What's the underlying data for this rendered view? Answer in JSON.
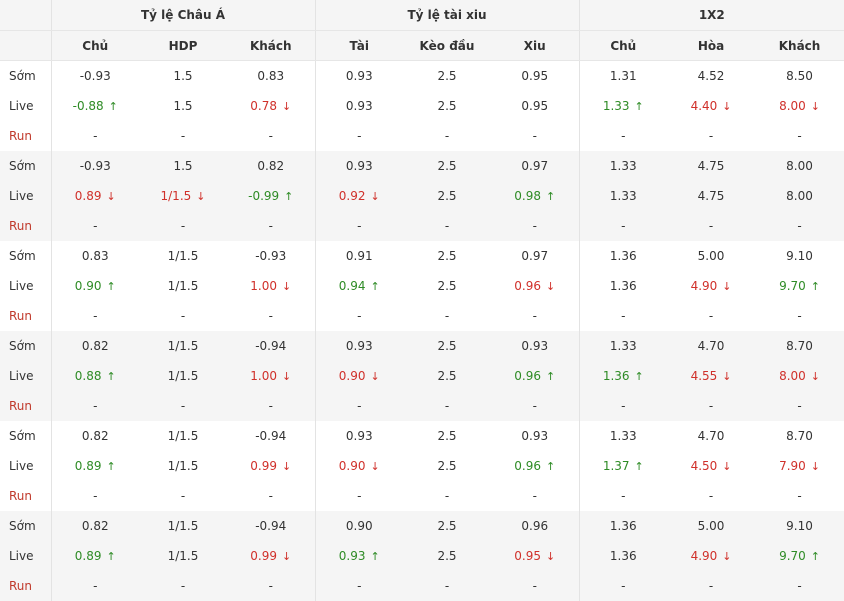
{
  "header": {
    "groups": [
      "Tỷ lệ Châu Á",
      "Tỷ lệ tài xiu",
      "1X2"
    ],
    "columns": [
      "Chủ",
      "HDP",
      "Khách",
      "Tài",
      "Kèo đầu",
      "Xiu",
      "Chủ",
      "Hòa",
      "Khách"
    ]
  },
  "labels": {
    "early": "Sớm",
    "live": "Live",
    "run": "Run"
  },
  "arrows": {
    "up": "↑",
    "down": "↓"
  },
  "colors": {
    "up": "#2e8b25",
    "down": "#d0302a",
    "run_label": "#c0392b",
    "shade": "#f5f5f5"
  },
  "blocks": [
    {
      "early": [
        "-0.93",
        "1.5",
        "0.83",
        "0.93",
        "2.5",
        "0.95",
        "1.31",
        "4.52",
        "8.50"
      ],
      "live": [
        "-0.88",
        "1.5",
        "0.78",
        "0.93",
        "2.5",
        "0.95",
        "1.33",
        "4.40",
        "8.00"
      ],
      "live_dir": [
        "up",
        "",
        "down",
        "",
        "",
        "",
        "up",
        "down",
        "down"
      ],
      "run": [
        "-",
        "-",
        "-",
        "-",
        "-",
        "-",
        "-",
        "-",
        "-"
      ]
    },
    {
      "early": [
        "-0.93",
        "1.5",
        "0.82",
        "0.93",
        "2.5",
        "0.97",
        "1.33",
        "4.75",
        "8.00"
      ],
      "live": [
        "0.89",
        "1/1.5",
        "-0.99",
        "0.92",
        "2.5",
        "0.98",
        "1.33",
        "4.75",
        "8.00"
      ],
      "live_dir": [
        "down",
        "down",
        "up",
        "down",
        "",
        "up",
        "",
        "",
        ""
      ],
      "run": [
        "-",
        "-",
        "-",
        "-",
        "-",
        "-",
        "-",
        "-",
        "-"
      ]
    },
    {
      "early": [
        "0.83",
        "1/1.5",
        "-0.93",
        "0.91",
        "2.5",
        "0.97",
        "1.36",
        "5.00",
        "9.10"
      ],
      "live": [
        "0.90",
        "1/1.5",
        "1.00",
        "0.94",
        "2.5",
        "0.96",
        "1.36",
        "4.90",
        "9.70"
      ],
      "live_dir": [
        "up",
        "",
        "down",
        "up",
        "",
        "down",
        "",
        "down",
        "up"
      ],
      "run": [
        "-",
        "-",
        "-",
        "-",
        "-",
        "-",
        "-",
        "-",
        "-"
      ]
    },
    {
      "early": [
        "0.82",
        "1/1.5",
        "-0.94",
        "0.93",
        "2.5",
        "0.93",
        "1.33",
        "4.70",
        "8.70"
      ],
      "live": [
        "0.88",
        "1/1.5",
        "1.00",
        "0.90",
        "2.5",
        "0.96",
        "1.36",
        "4.55",
        "8.00"
      ],
      "live_dir": [
        "up",
        "",
        "down",
        "down",
        "",
        "up",
        "up",
        "down",
        "down"
      ],
      "run": [
        "-",
        "-",
        "-",
        "-",
        "-",
        "-",
        "-",
        "-",
        "-"
      ]
    },
    {
      "early": [
        "0.82",
        "1/1.5",
        "-0.94",
        "0.93",
        "2.5",
        "0.93",
        "1.33",
        "4.70",
        "8.70"
      ],
      "live": [
        "0.89",
        "1/1.5",
        "0.99",
        "0.90",
        "2.5",
        "0.96",
        "1.37",
        "4.50",
        "7.90"
      ],
      "live_dir": [
        "up",
        "",
        "down",
        "down",
        "",
        "up",
        "up",
        "down",
        "down"
      ],
      "run": [
        "-",
        "-",
        "-",
        "-",
        "-",
        "-",
        "-",
        "-",
        "-"
      ]
    },
    {
      "early": [
        "0.82",
        "1/1.5",
        "-0.94",
        "0.90",
        "2.5",
        "0.96",
        "1.36",
        "5.00",
        "9.10"
      ],
      "live": [
        "0.89",
        "1/1.5",
        "0.99",
        "0.93",
        "2.5",
        "0.95",
        "1.36",
        "4.90",
        "9.70"
      ],
      "live_dir": [
        "up",
        "",
        "down",
        "up",
        "",
        "down",
        "",
        "down",
        "up"
      ],
      "run": [
        "-",
        "-",
        "-",
        "-",
        "-",
        "-",
        "-",
        "-",
        "-"
      ]
    }
  ]
}
